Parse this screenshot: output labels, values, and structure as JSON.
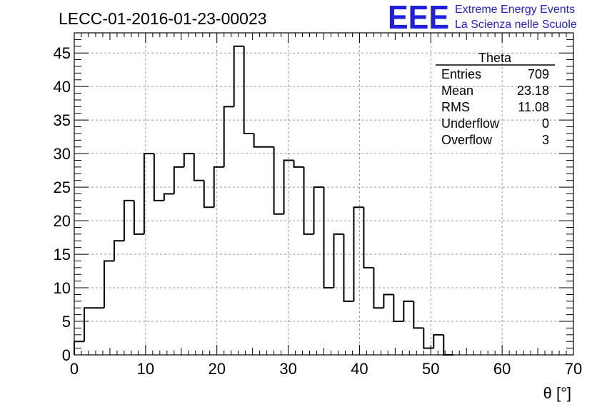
{
  "header": {
    "run_title": "LECC-01-2016-01-23-00023",
    "logo_text": "EEE",
    "logo_line1": "Extreme Energy Events",
    "logo_line2": "La Scienza nelle Scuole",
    "brand_color": "#1f1fdd"
  },
  "stats_box": {
    "title": "Theta",
    "rows": [
      {
        "label": "Entries",
        "value": "709"
      },
      {
        "label": "Mean",
        "value": "23.18"
      },
      {
        "label": "RMS",
        "value": "11.08"
      },
      {
        "label": "Underflow",
        "value": "0"
      },
      {
        "label": "Overflow",
        "value": "3"
      }
    ]
  },
  "chart_data": {
    "type": "bar",
    "histogram_style": "step",
    "xlabel": "θ [°]",
    "ylabel": "",
    "xlim": [
      0,
      70
    ],
    "ylim": [
      0,
      48
    ],
    "bin_width": 1.4,
    "x_ticks": [
      "0",
      "10",
      "20",
      "30",
      "40",
      "50",
      "60",
      "70"
    ],
    "y_ticks": [
      "0",
      "5",
      "10",
      "15",
      "20",
      "25",
      "30",
      "35",
      "40",
      "45"
    ],
    "grid": true,
    "series": [
      {
        "values": [
          2,
          7,
          7,
          14,
          17,
          23,
          18,
          30,
          23,
          24,
          28,
          30,
          26,
          22,
          28,
          37,
          46,
          33,
          31,
          31,
          21,
          29,
          28,
          18,
          25,
          10,
          18,
          8,
          22,
          13,
          7,
          9,
          5,
          8,
          4,
          1,
          3,
          0
        ]
      }
    ],
    "line_color": "#000000"
  }
}
